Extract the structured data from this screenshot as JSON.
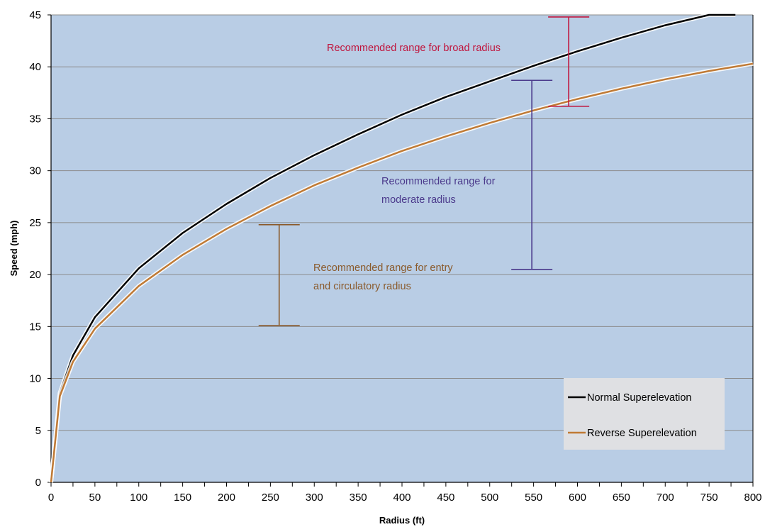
{
  "chart_data": {
    "type": "line",
    "title": "",
    "xlabel": "Radius (ft)",
    "ylabel": "Speed (mph)",
    "xlim": [
      0,
      800
    ],
    "ylim": [
      0,
      45
    ],
    "x_ticks": [
      0,
      50,
      100,
      150,
      200,
      250,
      300,
      350,
      400,
      450,
      500,
      550,
      600,
      650,
      700,
      750,
      800
    ],
    "y_ticks": [
      0,
      5,
      10,
      15,
      20,
      25,
      30,
      35,
      40,
      45
    ],
    "grid": "horizontal",
    "legend_position": "bottom-right",
    "series": [
      {
        "name": "Normal Superelevation",
        "color": "#000000",
        "x": [
          0,
          10,
          25,
          50,
          100,
          150,
          200,
          250,
          300,
          350,
          400,
          450,
          500,
          550,
          600,
          650,
          700,
          750,
          780
        ],
        "y": [
          0,
          8.6,
          12.2,
          15.9,
          20.6,
          24.0,
          26.8,
          29.3,
          31.5,
          33.5,
          35.4,
          37.1,
          38.6,
          40.1,
          41.5,
          42.8,
          44.0,
          45.0,
          45.0
        ]
      },
      {
        "name": "Reverse Superelevation",
        "color": "#c07a35",
        "x": [
          0,
          10,
          25,
          50,
          100,
          150,
          200,
          250,
          300,
          350,
          400,
          450,
          500,
          550,
          600,
          650,
          700,
          750,
          800
        ],
        "y": [
          0,
          8.3,
          11.6,
          14.8,
          18.9,
          21.9,
          24.4,
          26.6,
          28.6,
          30.3,
          31.9,
          33.3,
          34.6,
          35.8,
          36.9,
          37.9,
          38.8,
          39.6,
          40.3
        ]
      }
    ],
    "annotations": [
      {
        "label_lines": [
          "Recommended range for broad radius"
        ],
        "color": "#c0143c",
        "x": 590,
        "y_min": 36.2,
        "y_max": 44.8
      },
      {
        "label_lines": [
          "Recommended range for",
          "moderate radius"
        ],
        "color": "#4b3a8c",
        "x": 548,
        "y_min": 20.5,
        "y_max": 38.7
      },
      {
        "label_lines": [
          "Recommended range for entry",
          "and circulatory radius"
        ],
        "color": "#8a5a2b",
        "x": 260,
        "y_min": 15.1,
        "y_max": 24.8
      }
    ],
    "plot_background": "#b9cde5",
    "grid_color": "#8c8c8c"
  }
}
